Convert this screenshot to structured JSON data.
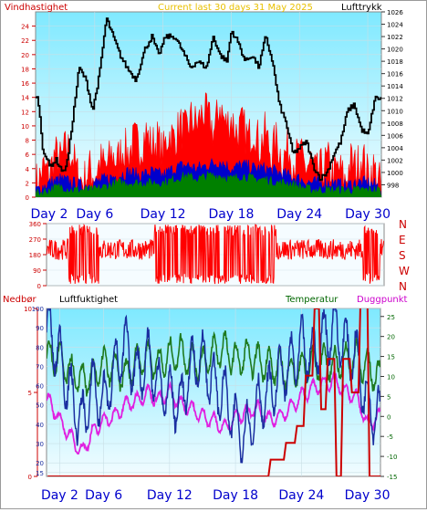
{
  "header": {
    "left_label": "Vindhastighet",
    "center_label": "Current last 30 days 31 May 2025",
    "right_label": "Lufttrykk"
  },
  "wind_chart": {
    "type": "line",
    "series": [
      {
        "name": "Vindhastighet",
        "color": "#ff0000"
      },
      {
        "name": "Vindhastighet",
        "color": "#0000cc"
      },
      {
        "name": "Vindhastighet",
        "color": "#008000"
      },
      {
        "name": "Lufttrykk",
        "color": "#000000"
      }
    ],
    "left_ylim": [
      0,
      26
    ],
    "left_ticks": [
      0,
      2,
      4,
      6,
      8,
      10,
      12,
      14,
      16,
      18,
      20,
      22,
      24
    ],
    "right_ylim": [
      996,
      1026
    ],
    "right_ticks": [
      998,
      1000,
      1002,
      1004,
      1006,
      1008,
      1010,
      1012,
      1014,
      1016,
      1018,
      1020,
      1022,
      1024,
      1026
    ],
    "xlim": [
      0.8,
      31.2
    ],
    "x_ticks": [
      "Day 2",
      "Day 6",
      "Day 12",
      "Day 18",
      "Day 24",
      "Day 30"
    ],
    "x_tick_days": [
      2,
      6,
      12,
      18,
      24,
      30
    ],
    "gust_color": "#ff0000",
    "wind_color": "#0000cc",
    "calm_color": "#008000",
    "pressure_color": "#000000",
    "pressure_points": [
      [
        1,
        1012
      ],
      [
        1.4,
        1004
      ],
      [
        2,
        1001
      ],
      [
        2.6,
        1002
      ],
      [
        3.2,
        1000
      ],
      [
        3.6,
        1002
      ],
      [
        4.6,
        1017
      ],
      [
        5.2,
        1015
      ],
      [
        5.8,
        1010
      ],
      [
        6.4,
        1016
      ],
      [
        7,
        1025
      ],
      [
        7.6,
        1022
      ],
      [
        8.2,
        1019
      ],
      [
        8.8,
        1017
      ],
      [
        9.6,
        1015
      ],
      [
        10.4,
        1020
      ],
      [
        11,
        1022
      ],
      [
        11.6,
        1019
      ],
      [
        12.2,
        1022
      ],
      [
        13,
        1022
      ],
      [
        13.6,
        1020
      ],
      [
        14.4,
        1017
      ],
      [
        15,
        1018
      ],
      [
        15.8,
        1017
      ],
      [
        16.4,
        1022
      ],
      [
        17,
        1019
      ],
      [
        17.6,
        1018
      ],
      [
        18,
        1023
      ],
      [
        18.6,
        1021
      ],
      [
        19.2,
        1018
      ],
      [
        19.8,
        1019
      ],
      [
        20.4,
        1017
      ],
      [
        21,
        1022
      ],
      [
        21.6,
        1018
      ],
      [
        22.2,
        1011
      ],
      [
        22.8,
        1008
      ],
      [
        23.4,
        1003
      ],
      [
        24,
        1004
      ],
      [
        24.6,
        1005
      ],
      [
        25.2,
        1001
      ],
      [
        25.8,
        999
      ],
      [
        26.4,
        1000
      ],
      [
        27,
        1003
      ],
      [
        27.6,
        1005
      ],
      [
        28.2,
        1010
      ],
      [
        28.8,
        1011
      ],
      [
        29.4,
        1007
      ],
      [
        30,
        1006
      ],
      [
        30.6,
        1012
      ],
      [
        31.2,
        1012
      ]
    ],
    "gust_points": [
      [
        1,
        2
      ],
      [
        1.5,
        4
      ],
      [
        2,
        3
      ],
      [
        2.5,
        6
      ],
      [
        3,
        5
      ],
      [
        3.5,
        7
      ],
      [
        4,
        6
      ],
      [
        4.5,
        3
      ],
      [
        5,
        2
      ],
      [
        5.5,
        4
      ],
      [
        6,
        3
      ],
      [
        6.5,
        5
      ],
      [
        7,
        4
      ],
      [
        7.5,
        6
      ],
      [
        8,
        5
      ],
      [
        8.5,
        7
      ],
      [
        9,
        6
      ],
      [
        9.5,
        8
      ],
      [
        10,
        7
      ],
      [
        10.5,
        9
      ],
      [
        11,
        7
      ],
      [
        11.5,
        8
      ],
      [
        12,
        6
      ],
      [
        12.5,
        9
      ],
      [
        13,
        8
      ],
      [
        13.5,
        10
      ],
      [
        14,
        9
      ],
      [
        14.5,
        11
      ],
      [
        15,
        10
      ],
      [
        15.5,
        12
      ],
      [
        16,
        11
      ],
      [
        16.5,
        9
      ],
      [
        17,
        13
      ],
      [
        17.5,
        10
      ],
      [
        18,
        11
      ],
      [
        18.5,
        9
      ],
      [
        19,
        10
      ],
      [
        19.5,
        8
      ],
      [
        20,
        10
      ],
      [
        20.5,
        7
      ],
      [
        21,
        9
      ],
      [
        21.5,
        6
      ],
      [
        22,
        8
      ],
      [
        22.5,
        5
      ],
      [
        23,
        7
      ],
      [
        23.5,
        5
      ],
      [
        24,
        6
      ],
      [
        24.5,
        4
      ],
      [
        25,
        5
      ],
      [
        25.5,
        3
      ],
      [
        26,
        4
      ],
      [
        26.5,
        5
      ],
      [
        27,
        3
      ],
      [
        27.5,
        4
      ],
      [
        28,
        2
      ],
      [
        28.5,
        5
      ],
      [
        29,
        4
      ],
      [
        29.5,
        6
      ],
      [
        30,
        3
      ],
      [
        30.5,
        4
      ],
      [
        31,
        2
      ]
    ],
    "wind_points": [
      [
        1,
        1
      ],
      [
        2,
        2
      ],
      [
        3,
        2.5
      ],
      [
        4,
        2
      ],
      [
        5,
        1.5
      ],
      [
        6,
        2
      ],
      [
        7,
        2.5
      ],
      [
        8,
        3
      ],
      [
        9,
        3.5
      ],
      [
        10,
        3
      ],
      [
        11,
        3.5
      ],
      [
        12,
        3
      ],
      [
        13,
        4
      ],
      [
        14,
        4.5
      ],
      [
        15,
        4
      ],
      [
        16,
        4.5
      ],
      [
        17,
        5
      ],
      [
        18,
        4
      ],
      [
        19,
        4.5
      ],
      [
        20,
        4
      ],
      [
        21,
        4
      ],
      [
        22,
        3.5
      ],
      [
        23,
        3
      ],
      [
        24,
        2.5
      ],
      [
        25,
        2
      ],
      [
        26,
        2
      ],
      [
        27,
        2
      ],
      [
        28,
        1.5
      ],
      [
        29,
        2
      ],
      [
        30,
        2
      ],
      [
        31,
        1.5
      ]
    ],
    "calm_points": [
      [
        1,
        0.5
      ],
      [
        2,
        1
      ],
      [
        3,
        1.5
      ],
      [
        4,
        1
      ],
      [
        5,
        1
      ],
      [
        6,
        1
      ],
      [
        7,
        1.5
      ],
      [
        8,
        2
      ],
      [
        9,
        2
      ],
      [
        10,
        2
      ],
      [
        11,
        2
      ],
      [
        12,
        2
      ],
      [
        13,
        2.5
      ],
      [
        14,
        3
      ],
      [
        15,
        2.5
      ],
      [
        16,
        3
      ],
      [
        17,
        3
      ],
      [
        18,
        2.5
      ],
      [
        19,
        3
      ],
      [
        20,
        2.5
      ],
      [
        21,
        2.5
      ],
      [
        22,
        2
      ],
      [
        23,
        2
      ],
      [
        24,
        1.5
      ],
      [
        25,
        1
      ],
      [
        26,
        1
      ],
      [
        27,
        1
      ],
      [
        28,
        1
      ],
      [
        29,
        1
      ],
      [
        30,
        1
      ],
      [
        31,
        1
      ]
    ]
  },
  "direction_chart": {
    "type": "scatter",
    "ylim": [
      0,
      360
    ],
    "left_ticks": [
      0,
      90,
      180,
      270,
      360
    ],
    "compass_labels": [
      "N",
      "W",
      "S",
      "E",
      "N"
    ],
    "compass_color": "#cc0000",
    "direction_color": "#ff0000",
    "xlim": [
      0.8,
      31.2
    ]
  },
  "weather_chart": {
    "labels": {
      "rain": "Nedbør",
      "humidity": "Luftfuktighet",
      "temperature": "Temperatur",
      "dewpoint": "Duggpunkt"
    },
    "label_colors": {
      "rain": "#cc0000",
      "humidity": "#000000",
      "temperature": "#006600",
      "dewpoint": "#cc00cc"
    },
    "rain_ylim": [
      0,
      10
    ],
    "rain_ticks": [
      0,
      5,
      10
    ],
    "humidity_ylim": [
      13,
      100
    ],
    "humidity_ticks": [
      15,
      20,
      30,
      40,
      50,
      60,
      70,
      80,
      90,
      100
    ],
    "temp_ylim": [
      -15,
      27
    ],
    "temp_ticks": [
      -15,
      -10,
      -5,
      0,
      5,
      10,
      15,
      20,
      25
    ],
    "xlim": [
      0.8,
      31.2
    ],
    "x_ticks": [
      "Day 2",
      "Day 6",
      "Day 12",
      "Day 18",
      "Day 24",
      "Day 30"
    ],
    "x_tick_days": [
      2,
      6,
      12,
      18,
      24,
      30
    ],
    "humidity_color": "#1a2ea0",
    "temperature_color": "#1f7a1f",
    "dewpoint_color": "#e020e0",
    "rain_color": "#cc0000",
    "rain_points": [
      [
        0.9,
        0
      ],
      [
        21,
        0
      ],
      [
        21.2,
        1
      ],
      [
        22.4,
        1
      ],
      [
        22.6,
        2
      ],
      [
        23.4,
        2
      ],
      [
        23.6,
        3
      ],
      [
        24.2,
        3
      ],
      [
        24.4,
        6
      ],
      [
        25,
        6
      ],
      [
        25.2,
        10
      ],
      [
        25.6,
        10
      ],
      [
        25.8,
        4
      ],
      [
        26.2,
        4
      ],
      [
        26.4,
        7
      ],
      [
        27,
        7
      ],
      [
        27.2,
        0
      ],
      [
        27.6,
        0
      ],
      [
        27.8,
        7
      ],
      [
        28.4,
        7
      ],
      [
        28.6,
        5
      ],
      [
        29.2,
        5
      ],
      [
        29.4,
        11
      ],
      [
        30,
        11
      ],
      [
        30.2,
        0
      ],
      [
        31.2,
        0
      ]
    ],
    "humidity_base": [
      [
        1,
        88
      ],
      [
        2,
        75
      ],
      [
        3,
        55
      ],
      [
        4,
        40
      ],
      [
        5,
        60
      ],
      [
        6,
        50
      ],
      [
        7,
        70
      ],
      [
        8,
        80
      ],
      [
        9,
        65
      ],
      [
        10,
        75
      ],
      [
        11,
        60
      ],
      [
        12,
        55
      ],
      [
        13,
        50
      ],
      [
        14,
        70
      ],
      [
        15,
        75
      ],
      [
        16,
        60
      ],
      [
        17,
        55
      ],
      [
        18,
        40
      ],
      [
        19,
        35
      ],
      [
        20,
        50
      ],
      [
        21,
        55
      ],
      [
        22,
        65
      ],
      [
        23,
        70
      ],
      [
        24,
        80
      ],
      [
        25,
        75
      ],
      [
        26,
        85
      ],
      [
        27,
        90
      ],
      [
        28,
        80
      ],
      [
        29,
        75
      ],
      [
        30,
        50
      ],
      [
        31,
        45
      ]
    ],
    "temp_base": [
      [
        1,
        15
      ],
      [
        2,
        14
      ],
      [
        3,
        11
      ],
      [
        4,
        9
      ],
      [
        5,
        10
      ],
      [
        6,
        13
      ],
      [
        7,
        12
      ],
      [
        8,
        10
      ],
      [
        9,
        14
      ],
      [
        10,
        15
      ],
      [
        11,
        13
      ],
      [
        12,
        15
      ],
      [
        13,
        16
      ],
      [
        14,
        14
      ],
      [
        15,
        13
      ],
      [
        16,
        16
      ],
      [
        17,
        17
      ],
      [
        18,
        14
      ],
      [
        19,
        15
      ],
      [
        20,
        14
      ],
      [
        21,
        13
      ],
      [
        22,
        12
      ],
      [
        23,
        11
      ],
      [
        24,
        12
      ],
      [
        25,
        13
      ],
      [
        26,
        14
      ],
      [
        27,
        13
      ],
      [
        28,
        14
      ],
      [
        29,
        15
      ],
      [
        30,
        12
      ],
      [
        31,
        10
      ]
    ],
    "dew_base": [
      [
        1,
        4
      ],
      [
        2,
        -1
      ],
      [
        3,
        -5
      ],
      [
        4,
        -9
      ],
      [
        5,
        -4
      ],
      [
        6,
        -1
      ],
      [
        7,
        0
      ],
      [
        8,
        3
      ],
      [
        9,
        4
      ],
      [
        10,
        6
      ],
      [
        11,
        4
      ],
      [
        12,
        6
      ],
      [
        13,
        3
      ],
      [
        14,
        2
      ],
      [
        15,
        0
      ],
      [
        16,
        -1
      ],
      [
        17,
        -3
      ],
      [
        18,
        0
      ],
      [
        19,
        1
      ],
      [
        20,
        2
      ],
      [
        21,
        -1
      ],
      [
        22,
        0
      ],
      [
        23,
        2
      ],
      [
        24,
        5
      ],
      [
        25,
        7
      ],
      [
        26,
        8
      ],
      [
        27,
        9
      ],
      [
        28,
        6
      ],
      [
        29,
        5
      ],
      [
        30,
        -2
      ],
      [
        31,
        0
      ]
    ]
  }
}
